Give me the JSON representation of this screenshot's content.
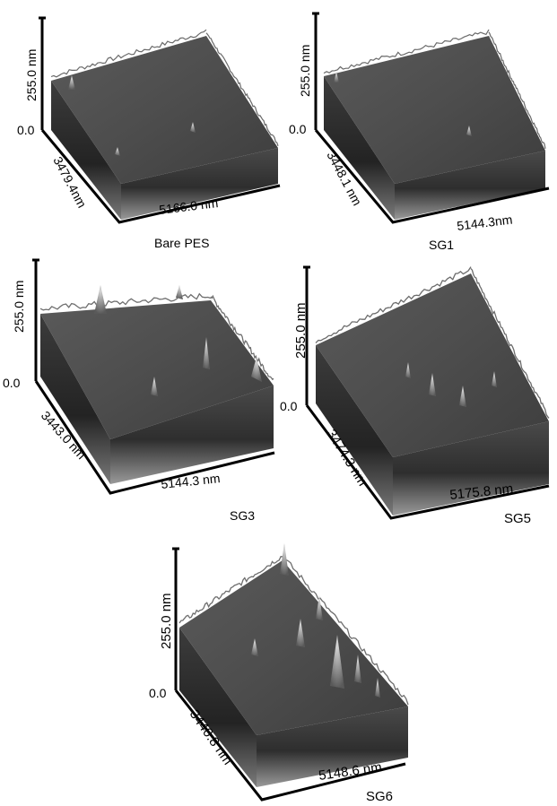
{
  "panels": [
    {
      "id": "bare-pes",
      "z_label": "255.0 nm",
      "zero_label": "0.0",
      "y_label": "3479.4nm",
      "x_label": "5166.0 nm",
      "sample": "Bare PES"
    },
    {
      "id": "sg1",
      "z_label": "255.0 nm",
      "zero_label": "0.0",
      "y_label": "3448.1 nm",
      "x_label": "5144.3nm",
      "sample": "SG1"
    },
    {
      "id": "sg3",
      "z_label": "255.0 nm",
      "zero_label": "0.0",
      "y_label": "3443.0 nm",
      "x_label": "5144.3 nm",
      "sample": "SG3"
    },
    {
      "id": "sg5",
      "z_label": "255.0 nm",
      "zero_label": "0.0",
      "y_label": "3474.3 nm",
      "x_label": "5175.8 nm",
      "sample": "SG5"
    },
    {
      "id": "sg6",
      "z_label": "255.0 nm",
      "zero_label": "0.0",
      "y_label": "3440.8 nm",
      "x_label": "5148.6 nm",
      "sample": "SG6"
    }
  ],
  "colors": {
    "surface_dark": "#2b2b2b",
    "surface_mid": "#575757",
    "surface_light": "#8c8c8c",
    "peak_highlight": "#c9c9c9",
    "axis": "#000000"
  }
}
